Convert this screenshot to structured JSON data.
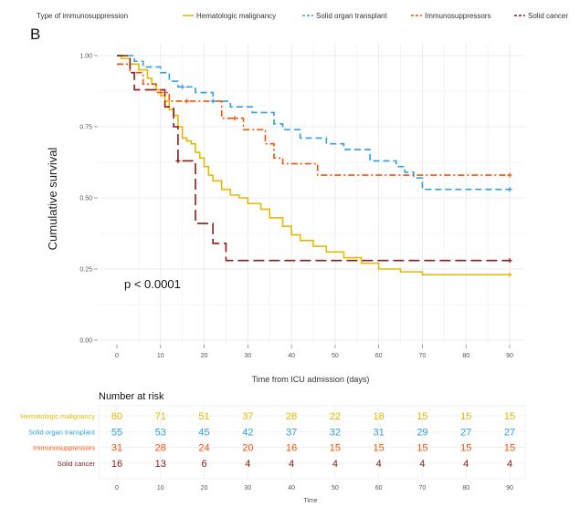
{
  "panel_label": "B",
  "legend_title": "Type of immunosuppression",
  "p_value_text": "p < 0.0001",
  "risk_table_title": "Number at risk",
  "colors": {
    "hematologic": "#e7b800",
    "solid_organ": "#2e9fdf",
    "immunosuppressors": "#fc4e07",
    "solid_cancer": "#8b1a1a"
  },
  "chart_data": {
    "type": "line",
    "subtype": "kaplan-meier step curves",
    "xlabel": "Time from ICU admission (days)",
    "ylabel": "Cumulative survival",
    "xlim": [
      0,
      90
    ],
    "ylim": [
      0,
      1
    ],
    "x_ticks": [
      0,
      10,
      20,
      30,
      40,
      50,
      60,
      70,
      80,
      90
    ],
    "y_ticks": [
      "0.00",
      "0.25",
      "0.50",
      "0.75",
      "1.00"
    ],
    "grid": true,
    "legend_position": "top",
    "series": [
      {
        "name": "Hematologic malignancy",
        "color_key": "hematologic",
        "dash": "solid",
        "x": [
          0,
          1,
          3,
          5,
          7,
          8,
          9,
          10,
          11,
          12,
          13,
          14,
          15,
          16,
          17,
          18,
          19,
          20,
          21,
          22,
          24,
          26,
          28,
          30,
          33,
          35,
          38,
          40,
          42,
          45,
          48,
          52,
          56,
          60,
          65,
          70,
          90
        ],
        "y": [
          1.0,
          0.99,
          0.97,
          0.95,
          0.92,
          0.9,
          0.88,
          0.86,
          0.84,
          0.81,
          0.79,
          0.75,
          0.71,
          0.7,
          0.69,
          0.66,
          0.64,
          0.61,
          0.58,
          0.56,
          0.53,
          0.51,
          0.5,
          0.48,
          0.46,
          0.43,
          0.4,
          0.37,
          0.35,
          0.33,
          0.31,
          0.29,
          0.27,
          0.25,
          0.24,
          0.23,
          0.23
        ],
        "censor_x": [
          90
        ]
      },
      {
        "name": "Solid organ transplant",
        "color_key": "solid_organ",
        "dash": "dashed",
        "x": [
          0,
          4,
          6,
          10,
          12,
          14,
          18,
          22,
          26,
          31,
          36,
          38,
          42,
          48,
          52,
          58,
          64,
          66,
          68,
          70,
          90
        ],
        "y": [
          1.0,
          0.98,
          0.96,
          0.94,
          0.91,
          0.89,
          0.87,
          0.84,
          0.82,
          0.8,
          0.76,
          0.74,
          0.71,
          0.69,
          0.67,
          0.63,
          0.61,
          0.59,
          0.57,
          0.53,
          0.53
        ],
        "censor_x": [
          15,
          22,
          90
        ]
      },
      {
        "name": "Immunosuppressors",
        "color_key": "immunosuppressors",
        "dash": "dotdash",
        "x": [
          0,
          3,
          6,
          9,
          12,
          24,
          29,
          34,
          36,
          38,
          46,
          90
        ],
        "y": [
          0.97,
          0.94,
          0.9,
          0.87,
          0.84,
          0.78,
          0.74,
          0.69,
          0.64,
          0.62,
          0.58,
          0.58
        ],
        "censor_x": [
          16,
          27,
          90
        ]
      },
      {
        "name": "Solid cancer",
        "color_key": "solid_cancer",
        "dash": "longdash",
        "x": [
          0,
          3,
          4,
          6,
          11,
          13,
          14,
          17,
          18,
          22,
          25,
          90
        ],
        "y": [
          1.0,
          0.94,
          0.88,
          0.88,
          0.82,
          0.75,
          0.63,
          0.63,
          0.41,
          0.34,
          0.28,
          0.28
        ],
        "censor_x": [
          14,
          90
        ]
      }
    ]
  },
  "risk_table": {
    "time_ticks": [
      0,
      10,
      20,
      30,
      40,
      50,
      60,
      70,
      80,
      90
    ],
    "xlabel": "Time",
    "rows": [
      {
        "label": "Hematologic malignancy",
        "color_key": "hematologic",
        "values": [
          80,
          71,
          51,
          37,
          28,
          22,
          18,
          15,
          15,
          15
        ]
      },
      {
        "label": "Solid organ transplant",
        "color_key": "solid_organ",
        "values": [
          55,
          53,
          45,
          42,
          37,
          32,
          31,
          29,
          27,
          27
        ]
      },
      {
        "label": "Immunosuppressors",
        "color_key": "immunosuppressors",
        "values": [
          31,
          28,
          24,
          20,
          16,
          15,
          15,
          15,
          15,
          15
        ]
      },
      {
        "label": "Solid cancer",
        "color_key": "solid_cancer",
        "values": [
          16,
          13,
          6,
          4,
          4,
          4,
          4,
          4,
          4,
          4
        ]
      }
    ]
  }
}
